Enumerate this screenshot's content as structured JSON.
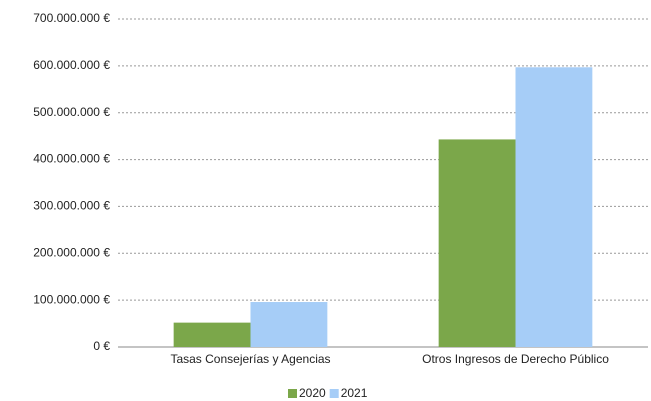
{
  "chart_data": {
    "type": "bar",
    "categories": [
      "Tasas Consejerías y Agencias",
      "Otros Ingresos de Derecho Público"
    ],
    "series": [
      {
        "name": "2020",
        "color": "#7ba74a",
        "values": [
          52000000,
          443000000
        ]
      },
      {
        "name": "2021",
        "color": "#a6cdf7",
        "values": [
          96000000,
          597000000
        ]
      }
    ],
    "ylim": [
      0,
      700000000
    ],
    "yticks": [
      {
        "value": 0,
        "label": "0 €"
      },
      {
        "value": 100000000,
        "label": "100.000.000 €"
      },
      {
        "value": 200000000,
        "label": "200.000.000 €"
      },
      {
        "value": 300000000,
        "label": "300.000.000 €"
      },
      {
        "value": 400000000,
        "label": "400.000.000 €"
      },
      {
        "value": 500000000,
        "label": "500.000.000 €"
      },
      {
        "value": 600000000,
        "label": "600.000.000 €"
      },
      {
        "value": 700000000,
        "label": "700.000.000 €"
      }
    ],
    "grid": true,
    "legend": "bottom"
  }
}
